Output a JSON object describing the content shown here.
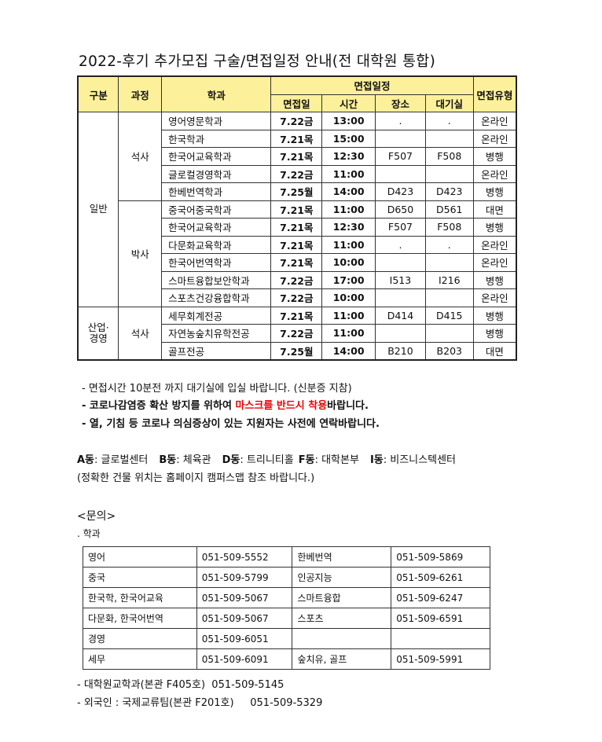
{
  "title": "2022-후기 추가모집 구술/면접일정 안내(전 대학원 통합)",
  "schedule": {
    "headers": {
      "category": "구분",
      "course": "과정",
      "dept": "학과",
      "group": "면접일정",
      "date": "면접일",
      "time": "시간",
      "place": "장소",
      "waiting": "대기실",
      "type": "면접유형"
    },
    "groups": [
      {
        "category": "일반",
        "courses": [
          {
            "course": "석사",
            "rows": [
              [
                "영어영문학과",
                "7.22금",
                "13:00",
                ".",
                ".",
                "온라인"
              ],
              [
                "한국학과",
                "7.21목",
                "15:00",
                "",
                "",
                "온라인"
              ],
              [
                "한국어교육학과",
                "7.21목",
                "12:30",
                "F507",
                "F508",
                "병행"
              ],
              [
                "글로컬경영학과",
                "7.22금",
                "11:00",
                "",
                "",
                "온라인"
              ],
              [
                "한베번역학과",
                "7.25월",
                "14:00",
                "D423",
                "D423",
                "병행"
              ]
            ]
          },
          {
            "course": "박사",
            "rows": [
              [
                "중국어중국학과",
                "7.21목",
                "11:00",
                "D650",
                "D561",
                "대면"
              ],
              [
                "한국어교육학과",
                "7.21목",
                "12:30",
                "F507",
                "F508",
                "병행"
              ],
              [
                "다문화교육학과",
                "7.21목",
                "11:00",
                ".",
                ".",
                "온라인"
              ],
              [
                "한국어번역학과",
                "7.21목",
                "10:00",
                "",
                "",
                "온라인"
              ],
              [
                "스마트융합보안학과",
                "7.22금",
                "17:00",
                "I513",
                "I216",
                "병행"
              ],
              [
                "스포츠건강융합학과",
                "7.22금",
                "10:00",
                "",
                "",
                "온라인"
              ]
            ]
          }
        ]
      },
      {
        "category": "산업·경영",
        "courses": [
          {
            "course": "석사",
            "rows": [
              [
                "세무회계전공",
                "7.21목",
                "11:00",
                "D414",
                "D415",
                "병행"
              ],
              [
                "자연농숲치유학전공",
                "7.22금",
                "11:00",
                "",
                "",
                "병행"
              ],
              [
                "골프전공",
                "7.25월",
                "14:00",
                "B210",
                "B203",
                "대면"
              ]
            ]
          }
        ]
      }
    ]
  },
  "notes": {
    "line1": "- 면접시간 10분전 까지 대기실에 입실 바랍니다. (신분증 지참)",
    "line2_a": "- 코로나감염증 확산 방지를 위하여 ",
    "line2_red": "마스크를 반드시 착용",
    "line2_b": "바랍니다.",
    "line3": "- 열, 기침 등 코로나 의심증상이 있는 지원자는 사전에 연락바랍니다.",
    "red_color": "#e00000"
  },
  "buildings": {
    "items": [
      {
        "code": "A동",
        "name": "글로벌센터"
      },
      {
        "code": "B동",
        "name": "체육관"
      },
      {
        "code": "D동",
        "name": "트리니티홀"
      },
      {
        "code": "F동",
        "name": "대학본부"
      },
      {
        "code": "I동",
        "name": "비즈니스텍센터"
      }
    ],
    "remark": "(정확한 건물 위치는 홈페이지 캠퍼스맵 참조 바랍니다.)"
  },
  "inquiry": {
    "heading": "<문의>",
    "sub": ". 학과",
    "rows": [
      [
        "영어",
        "051-509-5552",
        "한베번역",
        "051-509-5869"
      ],
      [
        "중국",
        "051-509-5799",
        "인공지능",
        "051-509-6261"
      ],
      [
        "한국학, 한국어교육",
        "051-509-5067",
        "스마트융합",
        "051-509-6247"
      ],
      [
        "다문화, 한국어번역",
        "051-509-5067",
        "스포츠",
        "051-509-6591"
      ],
      [
        "경영",
        "051-509-6051",
        "",
        ""
      ],
      [
        "세무",
        "051-509-6091",
        "숲치유, 골프",
        "051-509-5991"
      ]
    ],
    "footer1": "- 대학원교학과(본관 F405호)  051-509-5145",
    "footer2": "- 외국인 : 국제교류팀(본관 F201호)     051-509-5329"
  }
}
